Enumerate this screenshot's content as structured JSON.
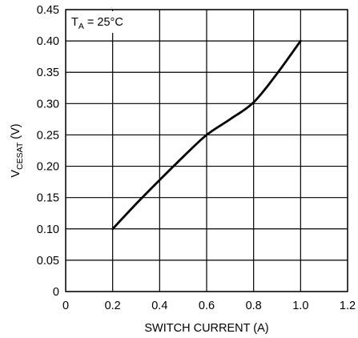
{
  "chart_data": {
    "type": "line",
    "title": "",
    "xlabel": "SWITCH CURRENT (A)",
    "ylabel_main": "V",
    "ylabel_sub": "CESAT",
    "ylabel_unit": " (V)",
    "annotation": {
      "main": "T",
      "sub": "A",
      "rest": " = 25°C"
    },
    "xlim": [
      0,
      1.2
    ],
    "ylim": [
      0,
      0.45
    ],
    "x_ticks": [
      "0",
      "0.2",
      "0.4",
      "0.6",
      "0.8",
      "1.0",
      "1.2"
    ],
    "y_ticks": [
      "0",
      "0.05",
      "0.10",
      "0.15",
      "0.20",
      "0.25",
      "0.30",
      "0.35",
      "0.40",
      "0.45"
    ],
    "grid": true,
    "legend": "none",
    "series": [
      {
        "x": [
          0.2,
          0.3,
          0.4,
          0.5,
          0.6,
          0.7,
          0.8,
          0.9,
          1.0
        ],
        "y": [
          0.1,
          0.14,
          0.178,
          0.215,
          0.25,
          0.275,
          0.302,
          0.348,
          0.4
        ]
      }
    ]
  }
}
